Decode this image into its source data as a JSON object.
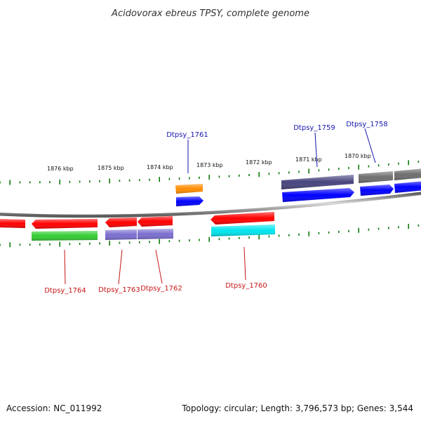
{
  "title": "Acidovorax ebreus TPSY, complete genome",
  "footer": {
    "accession": "Accession: NC_011992",
    "summary": "Topology: circular; Length: 3,796,573 bp; Genes: 3,544"
  },
  "colors": {
    "backbone": "#8c8c8c",
    "tick": "#0a7a0a",
    "label_forward": "#1515b0",
    "label_reverse": "#c81414",
    "red": "#ff0000",
    "blue": "#0000ff",
    "orange": "#ff8c00",
    "purple": "#7a6fd0",
    "darkpurple": "#47447e",
    "gray": "#6e6e6e",
    "green": "#33cc33",
    "cyan": "#00e5ee"
  },
  "scale": [
    "1876 kbp",
    "1875 kbp",
    "1874 kbp",
    "1873 kbp",
    "1872 kbp",
    "1871 kbp",
    "1870 kbp"
  ],
  "labels": {
    "Dtpsy_1761": "Dtpsy_1761",
    "Dtpsy_1759": "Dtpsy_1759",
    "Dtpsy_1758": "Dtpsy_1758",
    "Dtpsy_1764": "Dtpsy_1764",
    "Dtpsy_1763": "Dtpsy_1763",
    "Dtpsy_1762": "Dtpsy_1762",
    "Dtpsy_1760": "Dtpsy_1760"
  }
}
